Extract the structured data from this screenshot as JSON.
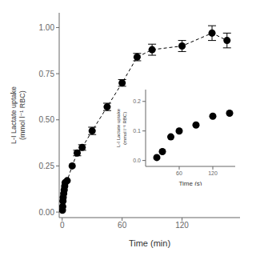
{
  "chart_data": [
    {
      "type": "scatter",
      "x": [
        0.25,
        0.5,
        0.75,
        1.0,
        1.5,
        2.0,
        2.5,
        3.0,
        5,
        10,
        15,
        20,
        30,
        45,
        60,
        75,
        90,
        120,
        150,
        165
      ],
      "values": [
        0.01,
        0.03,
        0.06,
        0.08,
        0.1,
        0.12,
        0.14,
        0.16,
        0.17,
        0.25,
        0.32,
        0.35,
        0.44,
        0.57,
        0.7,
        0.84,
        0.88,
        0.9,
        0.97,
        0.93
      ],
      "yerr": [
        0,
        0,
        0,
        0,
        0,
        0,
        0,
        0,
        0,
        0,
        0.015,
        0.015,
        0.02,
        0.02,
        0.018,
        0.02,
        0.03,
        0.03,
        0.04,
        0.04
      ],
      "color": "black",
      "marker": "circle",
      "line_style": "dashed",
      "xlabel": "Time (min)",
      "ylabel": "L-I Lactate uptake\n(mmol l⁻¹ RBC)",
      "xlim": [
        -3,
        178
      ],
      "ylim": [
        -0.03,
        1.08
      ],
      "xticks": [
        0,
        60,
        120
      ],
      "yticks": [
        {
          "value": 0,
          "label": "0.00"
        },
        0.25,
        {
          "value": 0.5,
          "label": "0.50"
        },
        0.75,
        {
          "value": 1.0,
          "label": "1.00"
        }
      ]
    },
    {
      "type": "scatter",
      "x": [
        20,
        30,
        45,
        60,
        90,
        120,
        150
      ],
      "values": [
        0.01,
        0.03,
        0.08,
        0.1,
        0.12,
        0.15,
        0.16
      ],
      "color": "black",
      "marker": "circle",
      "xlabel": "Time (s)",
      "ylabel": "L-I Lactate uptake\n(mmol l⁻¹ RBC)",
      "xlim": [
        0,
        160
      ],
      "ylim": [
        -0.02,
        0.24
      ],
      "xticks": [
        60,
        120
      ],
      "yticks": [
        {
          "value": 0.0,
          "label": "0.0"
        },
        0.1,
        0.2
      ]
    }
  ]
}
